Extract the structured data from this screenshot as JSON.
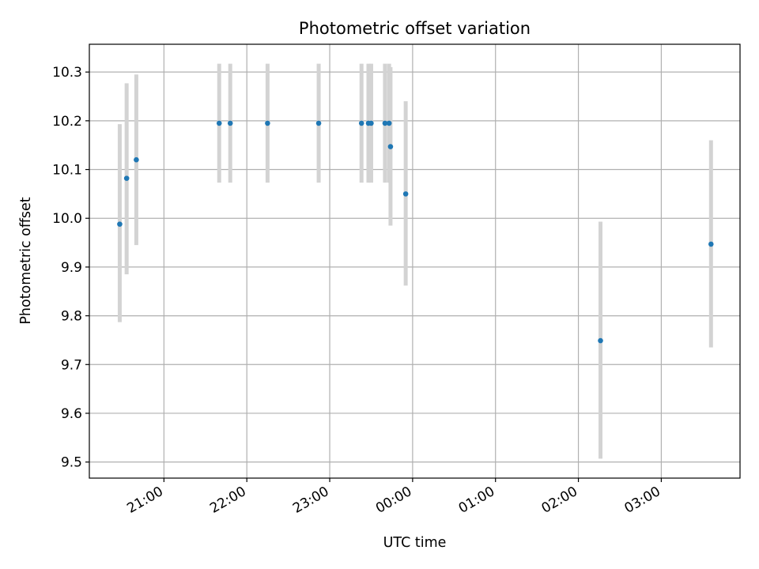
{
  "chart_data": {
    "type": "scatter",
    "title": "Photometric offset variation",
    "xlabel": "UTC time",
    "ylabel": "Photometric offset",
    "x_ticks": [
      "21:00",
      "22:00",
      "23:00",
      "00:00",
      "01:00",
      "02:00",
      "03:00"
    ],
    "x_tick_times": [
      "2000-01-01T21:00",
      "2000-01-01T22:00",
      "2000-01-01T23:00",
      "2000-01-02T00:00",
      "2000-01-02T01:00",
      "2000-01-02T02:00",
      "2000-01-02T03:00"
    ],
    "xlim": [
      "2000-01-01T20:06",
      "2000-01-02T03:57"
    ],
    "y_ticks": [
      "9.5",
      "9.6",
      "9.7",
      "9.8",
      "9.9",
      "10.0",
      "10.1",
      "10.2",
      "10.3"
    ],
    "ylim": [
      9.467,
      10.357
    ],
    "grid": true,
    "colors": {
      "points": "#1f77b4",
      "error_bars": "#d3d3d3",
      "grid": "#b0b0b0"
    },
    "series": [
      {
        "points": [
          {
            "t": "2000-01-01T20:28",
            "y": 9.988,
            "lo": 9.787,
            "hi": 10.193
          },
          {
            "t": "2000-01-01T20:33",
            "y": 10.082,
            "lo": 9.885,
            "hi": 10.277
          },
          {
            "t": "2000-01-01T20:40",
            "y": 10.12,
            "lo": 9.945,
            "hi": 10.295
          },
          {
            "t": "2000-01-01T21:40",
            "y": 10.195,
            "lo": 10.073,
            "hi": 10.317
          },
          {
            "t": "2000-01-01T21:48",
            "y": 10.195,
            "lo": 10.073,
            "hi": 10.317
          },
          {
            "t": "2000-01-01T22:15",
            "y": 10.195,
            "lo": 10.073,
            "hi": 10.317
          },
          {
            "t": "2000-01-01T22:52",
            "y": 10.195,
            "lo": 10.073,
            "hi": 10.317
          },
          {
            "t": "2000-01-01T23:23",
            "y": 10.195,
            "lo": 10.073,
            "hi": 10.317
          },
          {
            "t": "2000-01-01T23:28",
            "y": 10.195,
            "lo": 10.073,
            "hi": 10.317
          },
          {
            "t": "2000-01-01T23:30",
            "y": 10.195,
            "lo": 10.073,
            "hi": 10.317
          },
          {
            "t": "2000-01-01T23:40",
            "y": 10.195,
            "lo": 10.073,
            "hi": 10.317
          },
          {
            "t": "2000-01-01T23:43",
            "y": 10.195,
            "lo": 10.073,
            "hi": 10.317
          },
          {
            "t": "2000-01-01T23:44",
            "y": 10.147,
            "lo": 9.985,
            "hi": 10.31
          },
          {
            "t": "2000-01-01T23:55",
            "y": 10.05,
            "lo": 9.862,
            "hi": 10.24
          },
          {
            "t": "2000-01-02T02:16",
            "y": 9.749,
            "lo": 9.507,
            "hi": 9.993
          },
          {
            "t": "2000-01-02T03:36",
            "y": 9.947,
            "lo": 9.735,
            "hi": 10.16
          }
        ]
      }
    ]
  }
}
